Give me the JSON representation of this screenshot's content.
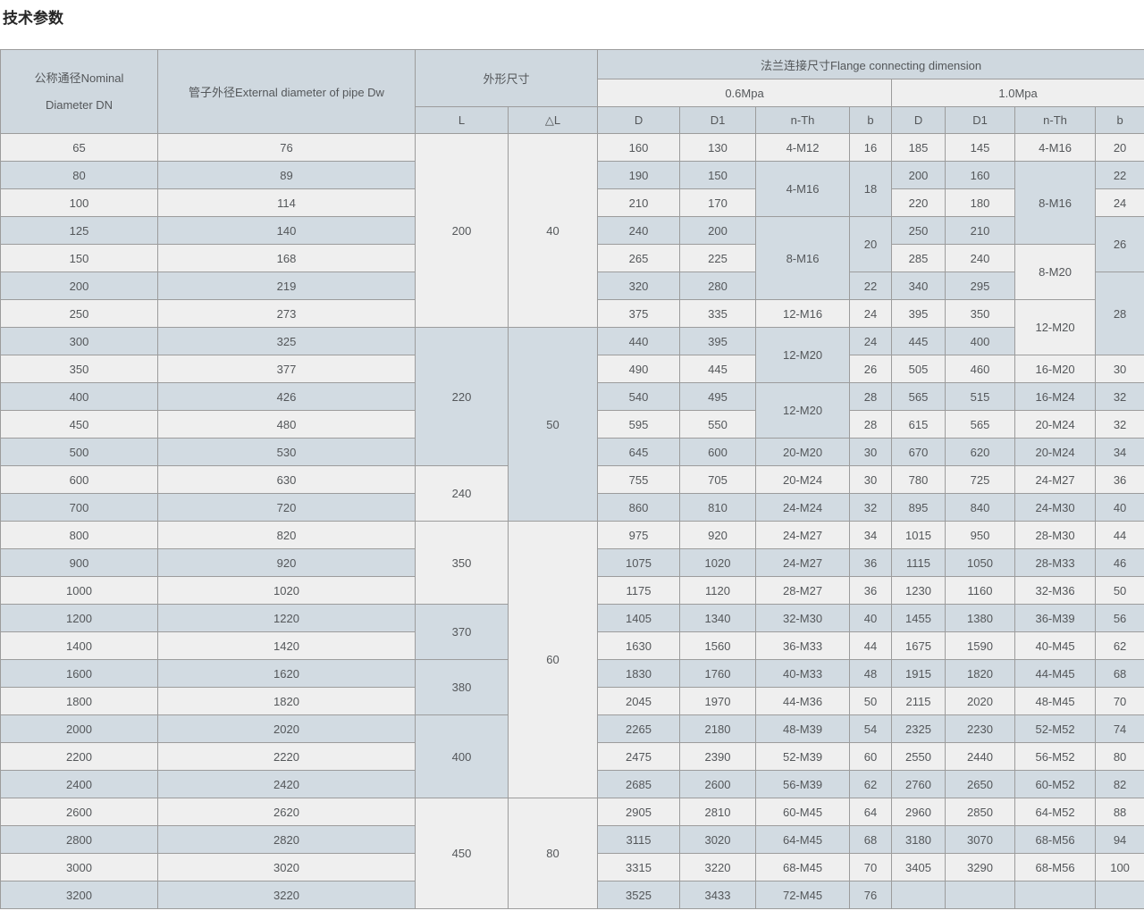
{
  "page_title": "技术参数",
  "colors": {
    "header_bg": "#cfd8df",
    "subheader_bg": "#efefef",
    "row_gray": "#efefef",
    "row_blue": "#d2dbe2",
    "border": "#9c9c9c",
    "text": "#54575a",
    "title_text": "#262626"
  },
  "table": {
    "header": {
      "dn": "公称通径Nominal Diameter DN",
      "dw": "管子外径External diameter of pipe Dw",
      "outline": "外形尺寸",
      "flange": "法兰连接尺寸Flange connecting dimension",
      "p06": "0.6Mpa",
      "p10": "1.0Mpa",
      "l": "L",
      "dl": "△L",
      "d06": "D",
      "d1_06": "D1",
      "nth06": "n-Th",
      "b06": "b",
      "d10": "D",
      "d1_10": "D1",
      "nth10": "n-Th",
      "b10": "b"
    },
    "rows": [
      [
        [
          "65",
          1
        ],
        [
          "76",
          1
        ],
        [
          "200",
          7
        ],
        [
          "40",
          7
        ],
        [
          "160",
          1
        ],
        [
          "130",
          1
        ],
        [
          "4-M12",
          1
        ],
        [
          "16",
          1
        ],
        [
          "185",
          1
        ],
        [
          "145",
          1
        ],
        [
          "4-M16",
          1
        ],
        [
          "20",
          1
        ]
      ],
      [
        [
          "80",
          1
        ],
        [
          "89",
          1
        ],
        [
          "190",
          1
        ],
        [
          "150",
          1
        ],
        [
          "4-M16",
          2
        ],
        [
          "18",
          2
        ],
        [
          "200",
          1
        ],
        [
          "160",
          1
        ],
        [
          "8-M16",
          3
        ],
        [
          "22",
          1
        ]
      ],
      [
        [
          "100",
          1
        ],
        [
          "114",
          1
        ],
        [
          "210",
          1
        ],
        [
          "170",
          1
        ],
        [
          "220",
          1
        ],
        [
          "180",
          1
        ],
        [
          "24",
          1
        ]
      ],
      [
        [
          "125",
          1
        ],
        [
          "140",
          1
        ],
        [
          "240",
          1
        ],
        [
          "200",
          1
        ],
        [
          "8-M16",
          3
        ],
        [
          "20",
          2
        ],
        [
          "250",
          1
        ],
        [
          "210",
          1
        ],
        [
          "26",
          2
        ]
      ],
      [
        [
          "150",
          1
        ],
        [
          "168",
          1
        ],
        [
          "265",
          1
        ],
        [
          "225",
          1
        ],
        [
          "285",
          1
        ],
        [
          "240",
          1
        ],
        [
          "8-M20",
          2
        ]
      ],
      [
        [
          "200",
          1
        ],
        [
          "219",
          1
        ],
        [
          "320",
          1
        ],
        [
          "280",
          1
        ],
        [
          "22",
          1
        ],
        [
          "340",
          1
        ],
        [
          "295",
          1
        ],
        [
          "28",
          3
        ]
      ],
      [
        [
          "250",
          1
        ],
        [
          "273",
          1
        ],
        [
          "375",
          1
        ],
        [
          "335",
          1
        ],
        [
          "12-M16",
          1
        ],
        [
          "24",
          1
        ],
        [
          "395",
          1
        ],
        [
          "350",
          1
        ],
        [
          "12-M20",
          2
        ]
      ],
      [
        [
          "300",
          1
        ],
        [
          "325",
          1
        ],
        [
          "220",
          5
        ],
        [
          "50",
          7
        ],
        [
          "440",
          1
        ],
        [
          "395",
          1
        ],
        [
          "12-M20",
          2
        ],
        [
          "24",
          1
        ],
        [
          "445",
          1
        ],
        [
          "400",
          1
        ]
      ],
      [
        [
          "350",
          1
        ],
        [
          "377",
          1
        ],
        [
          "490",
          1
        ],
        [
          "445",
          1
        ],
        [
          "26",
          1
        ],
        [
          "505",
          1
        ],
        [
          "460",
          1
        ],
        [
          "16-M20",
          1
        ],
        [
          "30",
          1
        ]
      ],
      [
        [
          "400",
          1
        ],
        [
          "426",
          1
        ],
        [
          "540",
          1
        ],
        [
          "495",
          1
        ],
        [
          "12-M20",
          2
        ],
        [
          "28",
          1
        ],
        [
          "565",
          1
        ],
        [
          "515",
          1
        ],
        [
          "16-M24",
          1
        ],
        [
          "32",
          1
        ]
      ],
      [
        [
          "450",
          1
        ],
        [
          "480",
          1
        ],
        [
          "595",
          1
        ],
        [
          "550",
          1
        ],
        [
          "28",
          1
        ],
        [
          "615",
          1
        ],
        [
          "565",
          1
        ],
        [
          "20-M24",
          1
        ],
        [
          "32",
          1
        ]
      ],
      [
        [
          "500",
          1
        ],
        [
          "530",
          1
        ],
        [
          "645",
          1
        ],
        [
          "600",
          1
        ],
        [
          "20-M20",
          1
        ],
        [
          "30",
          1
        ],
        [
          "670",
          1
        ],
        [
          "620",
          1
        ],
        [
          "20-M24",
          1
        ],
        [
          "34",
          1
        ]
      ],
      [
        [
          "600",
          1
        ],
        [
          "630",
          1
        ],
        [
          "240",
          2
        ],
        [
          "755",
          1
        ],
        [
          "705",
          1
        ],
        [
          "20-M24",
          1
        ],
        [
          "30",
          1
        ],
        [
          "780",
          1
        ],
        [
          "725",
          1
        ],
        [
          "24-M27",
          1
        ],
        [
          "36",
          1
        ]
      ],
      [
        [
          "700",
          1
        ],
        [
          "720",
          1
        ],
        [
          "860",
          1
        ],
        [
          "810",
          1
        ],
        [
          "24-M24",
          1
        ],
        [
          "32",
          1
        ],
        [
          "895",
          1
        ],
        [
          "840",
          1
        ],
        [
          "24-M30",
          1
        ],
        [
          "40",
          1
        ]
      ],
      [
        [
          "800",
          1
        ],
        [
          "820",
          1
        ],
        [
          "350",
          3
        ],
        [
          "60",
          10
        ],
        [
          "975",
          1
        ],
        [
          "920",
          1
        ],
        [
          "24-M27",
          1
        ],
        [
          "34",
          1
        ],
        [
          "1015",
          1
        ],
        [
          "950",
          1
        ],
        [
          "28-M30",
          1
        ],
        [
          "44",
          1
        ]
      ],
      [
        [
          "900",
          1
        ],
        [
          "920",
          1
        ],
        [
          "1075",
          1
        ],
        [
          "1020",
          1
        ],
        [
          "24-M27",
          1
        ],
        [
          "36",
          1
        ],
        [
          "1115",
          1
        ],
        [
          "1050",
          1
        ],
        [
          "28-M33",
          1
        ],
        [
          "46",
          1
        ]
      ],
      [
        [
          "1000",
          1
        ],
        [
          "1020",
          1
        ],
        [
          "1175",
          1
        ],
        [
          "1120",
          1
        ],
        [
          "28-M27",
          1
        ],
        [
          "36",
          1
        ],
        [
          "1230",
          1
        ],
        [
          "1160",
          1
        ],
        [
          "32-M36",
          1
        ],
        [
          "50",
          1
        ]
      ],
      [
        [
          "1200",
          1
        ],
        [
          "1220",
          1
        ],
        [
          "370",
          2
        ],
        [
          "1405",
          1
        ],
        [
          "1340",
          1
        ],
        [
          "32-M30",
          1
        ],
        [
          "40",
          1
        ],
        [
          "1455",
          1
        ],
        [
          "1380",
          1
        ],
        [
          "36-M39",
          1
        ],
        [
          "56",
          1
        ]
      ],
      [
        [
          "1400",
          1
        ],
        [
          "1420",
          1
        ],
        [
          "1630",
          1
        ],
        [
          "1560",
          1
        ],
        [
          "36-M33",
          1
        ],
        [
          "44",
          1
        ],
        [
          "1675",
          1
        ],
        [
          "1590",
          1
        ],
        [
          "40-M45",
          1
        ],
        [
          "62",
          1
        ]
      ],
      [
        [
          "1600",
          1
        ],
        [
          "1620",
          1
        ],
        [
          "380",
          2
        ],
        [
          "1830",
          1
        ],
        [
          "1760",
          1
        ],
        [
          "40-M33",
          1
        ],
        [
          "48",
          1
        ],
        [
          "1915",
          1
        ],
        [
          "1820",
          1
        ],
        [
          "44-M45",
          1
        ],
        [
          "68",
          1
        ]
      ],
      [
        [
          "1800",
          1
        ],
        [
          "1820",
          1
        ],
        [
          "2045",
          1
        ],
        [
          "1970",
          1
        ],
        [
          "44-M36",
          1
        ],
        [
          "50",
          1
        ],
        [
          "2115",
          1
        ],
        [
          "2020",
          1
        ],
        [
          "48-M45",
          1
        ],
        [
          "70",
          1
        ]
      ],
      [
        [
          "2000",
          1
        ],
        [
          "2020",
          1
        ],
        [
          "400",
          3
        ],
        [
          "2265",
          1
        ],
        [
          "2180",
          1
        ],
        [
          "48-M39",
          1
        ],
        [
          "54",
          1
        ],
        [
          "2325",
          1
        ],
        [
          "2230",
          1
        ],
        [
          "52-M52",
          1
        ],
        [
          "74",
          1
        ]
      ],
      [
        [
          "2200",
          1
        ],
        [
          "2220",
          1
        ],
        [
          "2475",
          1
        ],
        [
          "2390",
          1
        ],
        [
          "52-M39",
          1
        ],
        [
          "60",
          1
        ],
        [
          "2550",
          1
        ],
        [
          "2440",
          1
        ],
        [
          "56-M52",
          1
        ],
        [
          "80",
          1
        ]
      ],
      [
        [
          "2400",
          1
        ],
        [
          "2420",
          1
        ],
        [
          "2685",
          1
        ],
        [
          "2600",
          1
        ],
        [
          "56-M39",
          1
        ],
        [
          "62",
          1
        ],
        [
          "2760",
          1
        ],
        [
          "2650",
          1
        ],
        [
          "60-M52",
          1
        ],
        [
          "82",
          1
        ]
      ],
      [
        [
          "2600",
          1
        ],
        [
          "2620",
          1
        ],
        [
          "450",
          4
        ],
        [
          "80",
          4
        ],
        [
          "2905",
          1
        ],
        [
          "2810",
          1
        ],
        [
          "60-M45",
          1
        ],
        [
          "64",
          1
        ],
        [
          "2960",
          1
        ],
        [
          "2850",
          1
        ],
        [
          "64-M52",
          1
        ],
        [
          "88",
          1
        ]
      ],
      [
        [
          "2800",
          1
        ],
        [
          "2820",
          1
        ],
        [
          "3115",
          1
        ],
        [
          "3020",
          1
        ],
        [
          "64-M45",
          1
        ],
        [
          "68",
          1
        ],
        [
          "3180",
          1
        ],
        [
          "3070",
          1
        ],
        [
          "68-M56",
          1
        ],
        [
          "94",
          1
        ]
      ],
      [
        [
          "3000",
          1
        ],
        [
          "3020",
          1
        ],
        [
          "3315",
          1
        ],
        [
          "3220",
          1
        ],
        [
          "68-M45",
          1
        ],
        [
          "70",
          1
        ],
        [
          "3405",
          1
        ],
        [
          "3290",
          1
        ],
        [
          "68-M56",
          1
        ],
        [
          "100",
          1
        ]
      ],
      [
        [
          "3200",
          1
        ],
        [
          "3220",
          1
        ],
        [
          "3525",
          1
        ],
        [
          "3433",
          1
        ],
        [
          "72-M45",
          1
        ],
        [
          "76",
          1
        ],
        [
          "",
          1
        ],
        [
          "",
          1
        ],
        [
          "",
          1
        ],
        [
          "",
          1
        ]
      ]
    ]
  }
}
